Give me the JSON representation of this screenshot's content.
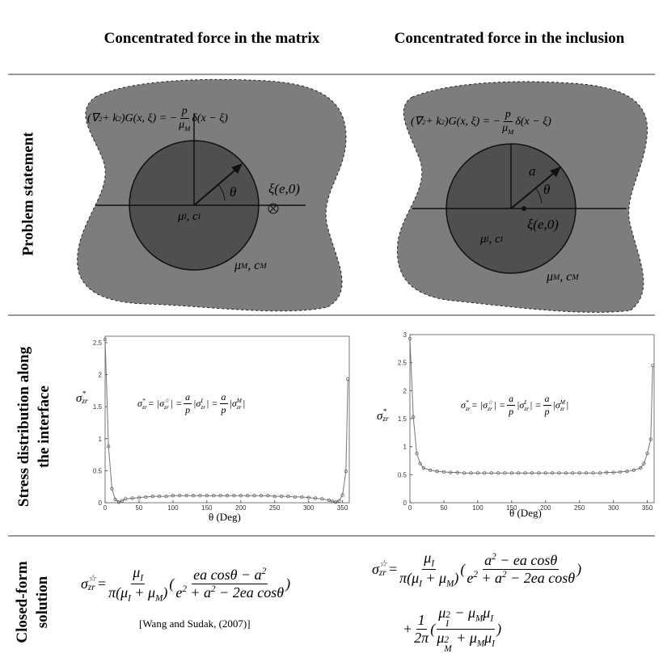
{
  "header": [
    "Concentrated force in the matrix",
    "Concentrated force in the inclusion"
  ],
  "rows": {
    "problem": "Problem statement",
    "stress": [
      "Stress distribution along",
      "the interface"
    ],
    "solution": [
      "Closed-form",
      "solution"
    ]
  },
  "diagrams": [
    {
      "equation": [
        "(∇",
        "2",
        " + k",
        "2",
        ")G(x, ξ) = −",
        "p",
        "μ",
        "M",
        "δ(x − ξ)"
      ],
      "labels": {
        "theta": "θ",
        "xi": "ξ(e,0)",
        "inner": [
          "μ",
          "I",
          ", c",
          "I"
        ],
        "outer": [
          "μ",
          "M",
          ", c",
          "M"
        ]
      }
    },
    {
      "equation": [
        "(∇",
        "2",
        " + k",
        "2",
        ")G(x, ξ) = −",
        "p",
        "μ",
        "M",
        "δ(x − ξ)"
      ],
      "labels": {
        "a": "a",
        "theta": "θ",
        "xi": "ξ(e,0)",
        "inner": [
          "μ",
          "I",
          ", c",
          "I"
        ],
        "outer": [
          "μ",
          "M",
          ", c",
          "M"
        ]
      }
    }
  ],
  "charts": [
    {
      "type": "line",
      "xlabel": "θ (Deg)",
      "ylabel": [
        "σ",
        "*",
        "zr"
      ],
      "equation": [
        "σ",
        "*",
        "zr",
        " = |σ",
        "☆",
        "zr",
        "| = ",
        "a",
        "p",
        "|σ",
        "I",
        "zr",
        "| = ",
        "a",
        "p",
        "|σ",
        "M",
        "zr",
        "|"
      ],
      "xlim": [
        0,
        360
      ],
      "ylim": [
        0,
        2.6
      ],
      "xticks": [
        0,
        50,
        100,
        150,
        200,
        250,
        300,
        350
      ],
      "yticks": [
        0,
        0.5,
        1,
        1.5,
        2,
        2.5
      ],
      "x": [
        0,
        5,
        10,
        15,
        20,
        25,
        30,
        40,
        50,
        60,
        70,
        80,
        90,
        100,
        110,
        120,
        130,
        140,
        150,
        160,
        170,
        180,
        190,
        200,
        210,
        220,
        230,
        240,
        250,
        260,
        270,
        280,
        290,
        300,
        310,
        320,
        330,
        335,
        340,
        345,
        350,
        355,
        358
      ],
      "series": [
        {
          "color": "#777777",
          "values": [
            2.55,
            0.88,
            0.22,
            0.05,
            0.01,
            0.03,
            0.06,
            0.07,
            0.08,
            0.09,
            0.1,
            0.1,
            0.1,
            0.11,
            0.11,
            0.11,
            0.11,
            0.11,
            0.11,
            0.11,
            0.11,
            0.11,
            0.11,
            0.11,
            0.11,
            0.11,
            0.11,
            0.11,
            0.1,
            0.1,
            0.1,
            0.09,
            0.09,
            0.08,
            0.07,
            0.06,
            0.04,
            0.02,
            0.01,
            0.03,
            0.12,
            0.49,
            1.93
          ]
        }
      ]
    },
    {
      "type": "line",
      "xlabel": "θ (Deg)",
      "ylabel": [
        "σ",
        "*",
        "zr"
      ],
      "equation": [
        "σ",
        "*",
        "zr",
        " = |σ",
        "☆",
        "zr",
        "| = ",
        "a",
        "p",
        "|σ",
        "I",
        "zr",
        "| = ",
        "a",
        "p",
        "|σ",
        "M",
        "zr",
        "|"
      ],
      "xlim": [
        0,
        360
      ],
      "ylim": [
        0,
        3
      ],
      "xticks": [
        0,
        50,
        100,
        150,
        200,
        250,
        300,
        350
      ],
      "yticks": [
        0,
        0.5,
        1,
        1.5,
        2,
        2.5,
        3
      ],
      "x": [
        0,
        5,
        10,
        15,
        20,
        30,
        40,
        50,
        60,
        70,
        80,
        90,
        100,
        110,
        120,
        130,
        140,
        150,
        160,
        170,
        180,
        190,
        200,
        210,
        220,
        230,
        240,
        250,
        260,
        270,
        280,
        290,
        300,
        310,
        320,
        330,
        340,
        345,
        350,
        355,
        358
      ],
      "series": [
        {
          "color": "#777777",
          "values": [
            2.93,
            1.53,
            0.88,
            0.7,
            0.62,
            0.58,
            0.56,
            0.55,
            0.54,
            0.54,
            0.53,
            0.53,
            0.53,
            0.53,
            0.53,
            0.53,
            0.53,
            0.53,
            0.53,
            0.53,
            0.53,
            0.53,
            0.53,
            0.53,
            0.53,
            0.53,
            0.53,
            0.53,
            0.53,
            0.53,
            0.53,
            0.54,
            0.54,
            0.55,
            0.56,
            0.58,
            0.62,
            0.7,
            0.88,
            1.13,
            2.45
          ]
        }
      ]
    }
  ],
  "solutions": [
    {
      "lines": [
        [
          "σ",
          "☆",
          "zr",
          " = ",
          "μ",
          "I",
          "π(μ",
          "I",
          " + μ",
          "M",
          ")",
          "(",
          "ea cosθ − a",
          "2",
          "e",
          "2",
          " + a",
          "2",
          " − 2ea cosθ",
          ")"
        ]
      ],
      "citation": "[Wang and Sudak, (2007)]"
    },
    {
      "lines": [
        [
          "σ",
          "☆",
          "zr",
          " = ",
          "μ",
          "I",
          "π(μ",
          "I",
          " + μ",
          "M",
          ")",
          "(",
          "a",
          "2",
          " − ea cosθ",
          "e",
          "2",
          " + a",
          "2",
          " − 2ea cosθ",
          ")"
        ],
        [
          "+",
          "1",
          "2π",
          "(",
          "μ",
          "2",
          "I",
          " − μ",
          "M",
          "μ",
          "I",
          "μ",
          "2",
          "M",
          " + μ",
          "M",
          "μ",
          "I",
          ")"
        ]
      ]
    }
  ]
}
